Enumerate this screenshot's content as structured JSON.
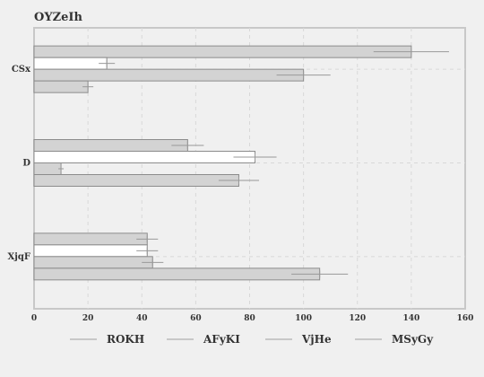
{
  "chart_data": {
    "type": "bar",
    "orientation": "horizontal",
    "title": "OYZeIh",
    "xlabel": "",
    "ylabel": "",
    "categories": [
      "CSx",
      "D",
      "XjqF"
    ],
    "xlim": [
      0,
      160
    ],
    "xticks": [
      0,
      20,
      40,
      60,
      80,
      100,
      120,
      140,
      160
    ],
    "grid": true,
    "legend_position": "bottom",
    "series": [
      {
        "name": "ROKH",
        "color": "#d3d3d3",
        "values": [
          140,
          57,
          42
        ],
        "errors": [
          14,
          6,
          4
        ]
      },
      {
        "name": "AFyKI",
        "color": "#ffffff",
        "values": [
          27,
          82,
          42
        ],
        "errors": [
          3,
          8,
          4
        ]
      },
      {
        "name": "VjHe",
        "color": "#d3d3d3",
        "values": [
          100,
          10,
          44
        ],
        "errors": [
          10,
          1,
          4
        ]
      },
      {
        "name": "MSyGy",
        "color": "#d3d3d3",
        "values": [
          20,
          76,
          106
        ],
        "errors": [
          2,
          7.5,
          10.5
        ]
      }
    ]
  }
}
